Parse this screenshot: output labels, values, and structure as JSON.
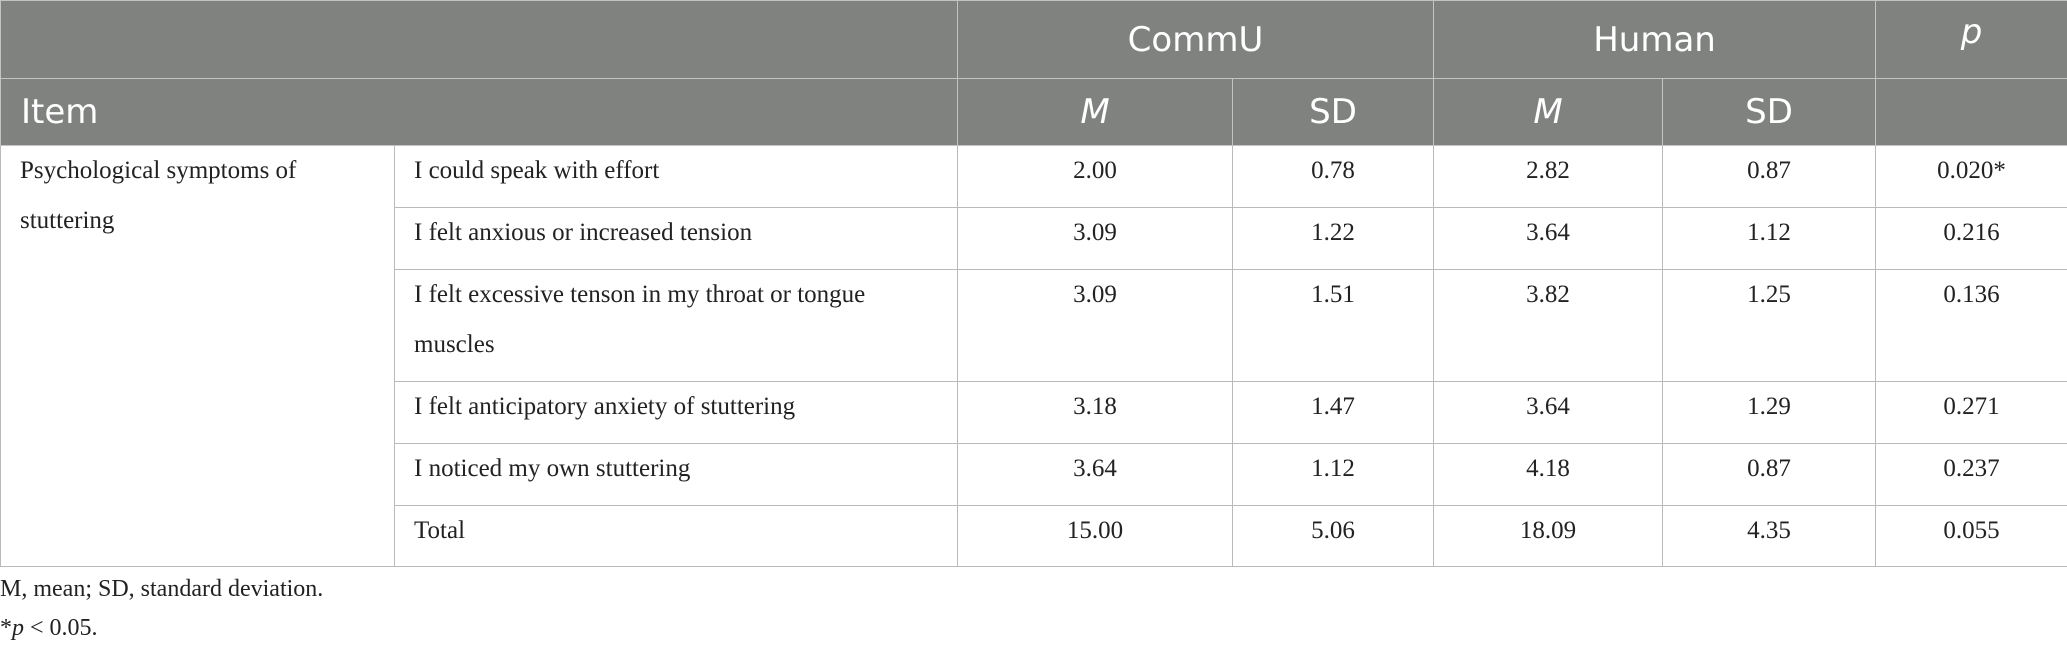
{
  "table": {
    "header": {
      "item": "Item",
      "group1": "CommU",
      "group2": "Human",
      "p": "p",
      "mean": "M",
      "sd": "SD"
    },
    "category": "Psychological symptoms of stuttering",
    "rows": [
      {
        "item": "I could speak with effort",
        "commu_m": "2.00",
        "commu_sd": "0.78",
        "human_m": "2.82",
        "human_sd": "0.87",
        "p": "0.020*"
      },
      {
        "item": "I felt anxious or increased tension",
        "commu_m": "3.09",
        "commu_sd": "1.22",
        "human_m": "3.64",
        "human_sd": "1.12",
        "p": "0.216"
      },
      {
        "item": "I felt excessive tenson in my throat or tongue muscles",
        "commu_m": "3.09",
        "commu_sd": "1.51",
        "human_m": "3.82",
        "human_sd": "1.25",
        "p": "0.136"
      },
      {
        "item": "I felt anticipatory anxiety of stuttering",
        "commu_m": "3.18",
        "commu_sd": "1.47",
        "human_m": "3.64",
        "human_sd": "1.29",
        "p": "0.271"
      },
      {
        "item": "I noticed my own stuttering",
        "commu_m": "3.64",
        "commu_sd": "1.12",
        "human_m": "4.18",
        "human_sd": "0.87",
        "p": "0.237"
      },
      {
        "item": "Total",
        "commu_m": "15.00",
        "commu_sd": "5.06",
        "human_m": "18.09",
        "human_sd": "4.35",
        "p": "0.055"
      }
    ]
  },
  "footnotes": {
    "abbrev": "M, mean; SD, standard deviation.",
    "sig_prefix": "*",
    "sig_p": "p",
    "sig_rest": " < 0.05."
  }
}
